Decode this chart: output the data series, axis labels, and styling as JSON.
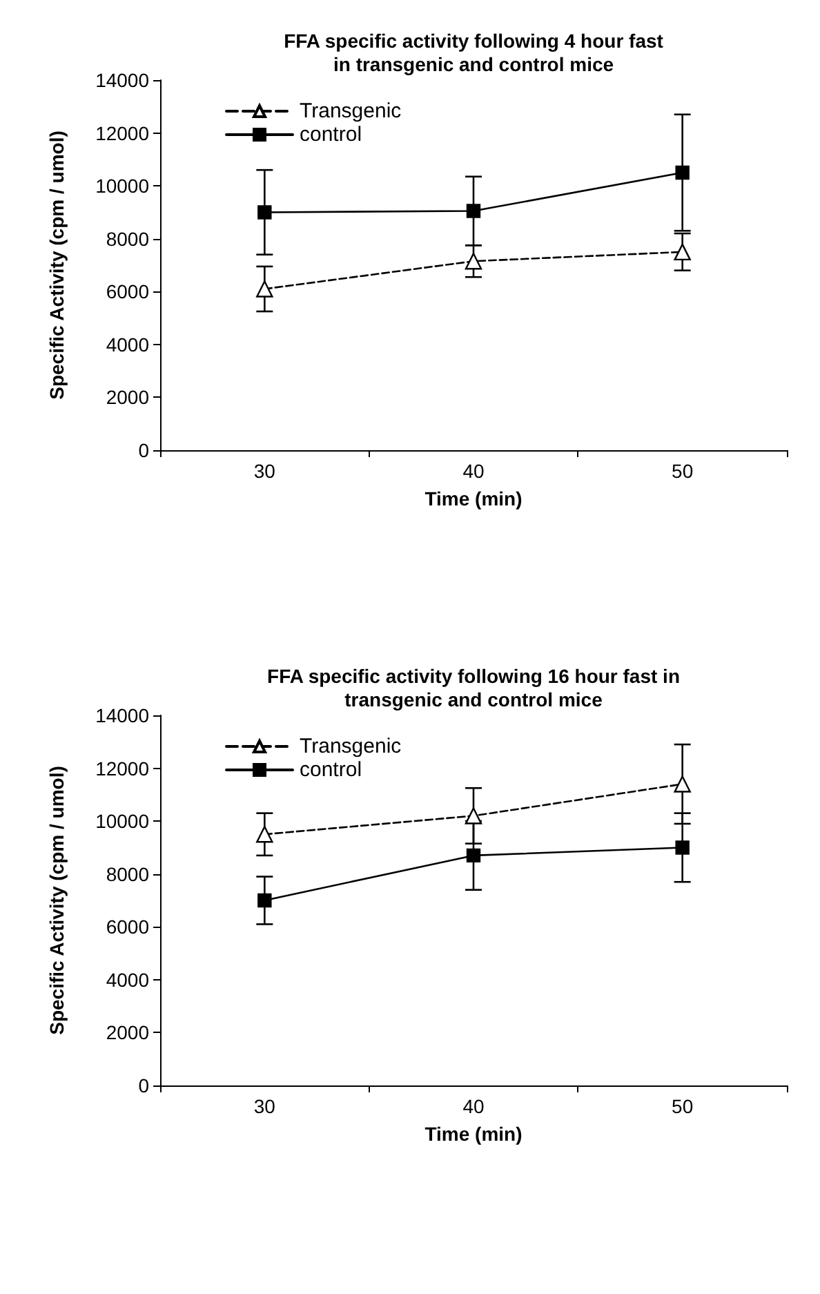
{
  "chart_data": [
    {
      "type": "line",
      "title": "FFA specific activity following 4 hour fast\nin transgenic and control mice",
      "xlabel": "Time (min)",
      "ylabel": "Specific Activity (cpm / umol)",
      "categories": [
        "30",
        "40",
        "50"
      ],
      "ylim": [
        0,
        14000
      ],
      "yticks": [
        0,
        2000,
        4000,
        6000,
        8000,
        10000,
        12000,
        14000
      ],
      "grid": false,
      "legend": "top left",
      "series": [
        {
          "name": "Transgenic",
          "color": "#000000",
          "marker": "triangle",
          "line_style": "dashed",
          "values": [
            6100,
            7150,
            7500
          ],
          "errors": [
            850,
            600,
            700
          ]
        },
        {
          "name": "control",
          "color": "#000000",
          "marker": "square",
          "line_style": "solid",
          "values": [
            9000,
            9050,
            10500
          ],
          "errors": [
            1600,
            1300,
            2200
          ]
        }
      ]
    },
    {
      "type": "line",
      "title": "FFA specific activity following 16 hour fast in\ntransgenic and control mice",
      "xlabel": "Time (min)",
      "ylabel": "Specific Activity (cpm / umol)",
      "categories": [
        "30",
        "40",
        "50"
      ],
      "ylim": [
        0,
        14000
      ],
      "yticks": [
        0,
        2000,
        4000,
        6000,
        8000,
        10000,
        12000,
        14000
      ],
      "grid": false,
      "legend": "top left",
      "series": [
        {
          "name": "Transgenic",
          "color": "#000000",
          "marker": "triangle",
          "line_style": "dashed",
          "values": [
            9500,
            10200,
            11400
          ],
          "errors": [
            800,
            1050,
            1500
          ]
        },
        {
          "name": "control",
          "color": "#000000",
          "marker": "square",
          "line_style": "solid",
          "values": [
            7000,
            8700,
            9000
          ],
          "errors": [
            900,
            1300,
            1300
          ]
        }
      ]
    }
  ]
}
